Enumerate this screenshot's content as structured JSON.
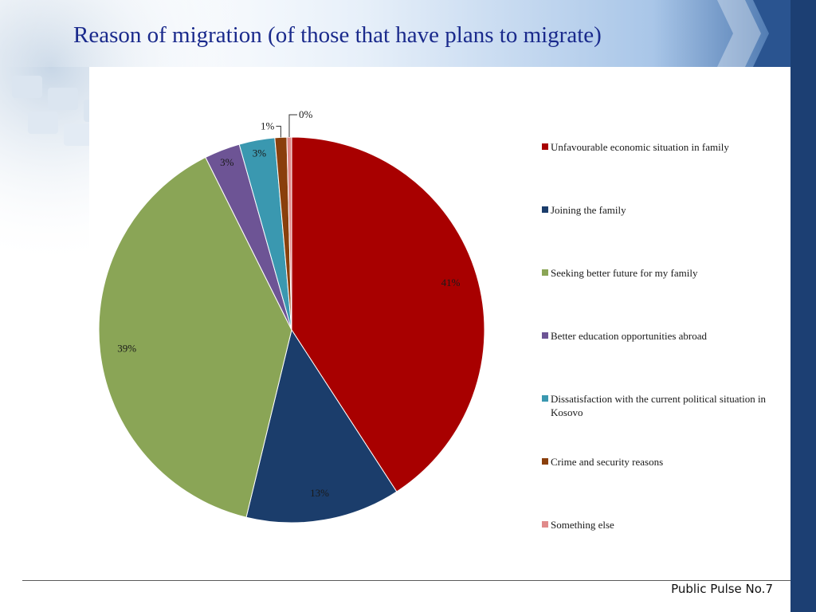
{
  "slide": {
    "title": "Reason of migration (of those that have plans to migrate)",
    "footer": "Public Pulse No.7"
  },
  "colors": {
    "title": "#1a2a8c",
    "right_bar": "#1c3f73",
    "banner_light": "#cfe0f2",
    "banner_dark": "#2f5f9e"
  },
  "chart_data": {
    "type": "pie",
    "title": "",
    "legend_position": "right",
    "slices": [
      {
        "name": "Unfavourable economic situation in family",
        "value": 41,
        "label": "41%",
        "color": "#a80000"
      },
      {
        "name": "Joining the family",
        "value": 13,
        "label": "13%",
        "color": "#1b3d6b"
      },
      {
        "name": "Seeking better future for my family",
        "value": 39,
        "label": "39%",
        "color": "#8aa556"
      },
      {
        "name": "Better education opportunities abroad",
        "value": 3,
        "label": "3%",
        "color": "#6d5495"
      },
      {
        "name": "Dissatisfaction with the current political situation in Kosovo",
        "value": 3,
        "label": "3%",
        "color": "#3a98b0"
      },
      {
        "name": "Crime and security reasons",
        "value": 1,
        "label": "1%",
        "color": "#8a3f0c"
      },
      {
        "name": "Something else",
        "value": 0.4,
        "label": "0%",
        "color": "#e08a8a"
      }
    ]
  }
}
